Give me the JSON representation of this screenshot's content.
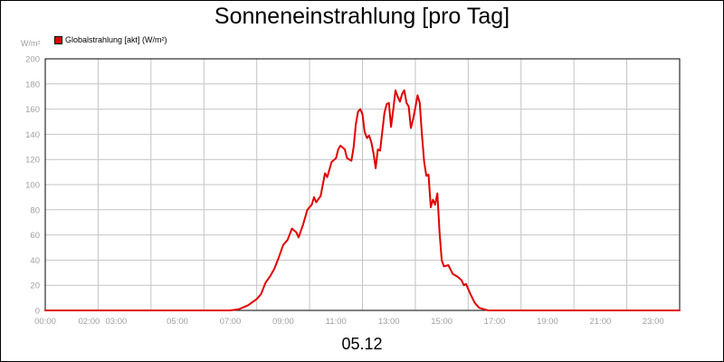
{
  "chart_data": {
    "type": "line",
    "title": "Sonneneinstrahlung [pro Tag]",
    "y_unit": "W/m²",
    "date": "05.12",
    "legend_position": "top-left",
    "grid": true,
    "series": [
      {
        "name": "Globalstrahlung [akt] (W/m²)",
        "color": "#e00000",
        "points": [
          [
            "00:00",
            0
          ],
          [
            "07:00",
            0
          ],
          [
            "07:20",
            1
          ],
          [
            "07:40",
            4
          ],
          [
            "08:00",
            9
          ],
          [
            "08:10",
            13
          ],
          [
            "08:20",
            22
          ],
          [
            "08:30",
            27
          ],
          [
            "08:40",
            33
          ],
          [
            "08:50",
            42
          ],
          [
            "09:00",
            52
          ],
          [
            "09:10",
            56
          ],
          [
            "09:20",
            65
          ],
          [
            "09:30",
            62
          ],
          [
            "09:35",
            58
          ],
          [
            "09:45",
            68
          ],
          [
            "09:55",
            80
          ],
          [
            "10:05",
            84
          ],
          [
            "10:10",
            90
          ],
          [
            "10:15",
            86
          ],
          [
            "10:25",
            91
          ],
          [
            "10:35",
            109
          ],
          [
            "10:40",
            106
          ],
          [
            "10:50",
            118
          ],
          [
            "11:00",
            121
          ],
          [
            "11:05",
            128
          ],
          [
            "11:10",
            131
          ],
          [
            "11:20",
            128
          ],
          [
            "11:25",
            121
          ],
          [
            "11:35",
            119
          ],
          [
            "11:40",
            130
          ],
          [
            "11:45",
            148
          ],
          [
            "11:50",
            158
          ],
          [
            "11:55",
            160
          ],
          [
            "12:00",
            156
          ],
          [
            "12:05",
            142
          ],
          [
            "12:10",
            137
          ],
          [
            "12:15",
            139
          ],
          [
            "12:20",
            134
          ],
          [
            "12:25",
            125
          ],
          [
            "12:30",
            113
          ],
          [
            "12:35",
            128
          ],
          [
            "12:40",
            127
          ],
          [
            "12:45",
            142
          ],
          [
            "12:50",
            157
          ],
          [
            "12:55",
            164
          ],
          [
            "13:00",
            165
          ],
          [
            "13:05",
            146
          ],
          [
            "13:10",
            160
          ],
          [
            "13:15",
            175
          ],
          [
            "13:20",
            170
          ],
          [
            "13:25",
            166
          ],
          [
            "13:30",
            172
          ],
          [
            "13:35",
            175
          ],
          [
            "13:40",
            165
          ],
          [
            "13:45",
            162
          ],
          [
            "13:50",
            145
          ],
          [
            "13:55",
            152
          ],
          [
            "14:00",
            161
          ],
          [
            "14:05",
            171
          ],
          [
            "14:10",
            165
          ],
          [
            "14:15",
            140
          ],
          [
            "14:20",
            118
          ],
          [
            "14:25",
            107
          ],
          [
            "14:30",
            108
          ],
          [
            "14:35",
            82
          ],
          [
            "14:40",
            88
          ],
          [
            "14:45",
            84
          ],
          [
            "14:50",
            93
          ],
          [
            "14:55",
            62
          ],
          [
            "15:00",
            40
          ],
          [
            "15:05",
            35
          ],
          [
            "15:15",
            36
          ],
          [
            "15:25",
            29
          ],
          [
            "15:35",
            27
          ],
          [
            "15:45",
            24
          ],
          [
            "15:50",
            20
          ],
          [
            "15:55",
            21
          ],
          [
            "16:05",
            13
          ],
          [
            "16:15",
            6
          ],
          [
            "16:25",
            2
          ],
          [
            "16:35",
            1
          ],
          [
            "16:45",
            0
          ],
          [
            "24:00",
            0
          ]
        ]
      }
    ],
    "x_ticks": [
      "00:00",
      "02:00",
      "03:00",
      "05:00",
      "07:00",
      "09:00",
      "11:00",
      "13:00",
      "15:00",
      "17:00",
      "19:00",
      "21:00",
      "23:00"
    ],
    "y_ticks": [
      0,
      20,
      40,
      60,
      80,
      100,
      120,
      140,
      160,
      180,
      200
    ],
    "x_range": [
      "00:00",
      "24:00"
    ],
    "ylim": [
      0,
      200
    ]
  }
}
